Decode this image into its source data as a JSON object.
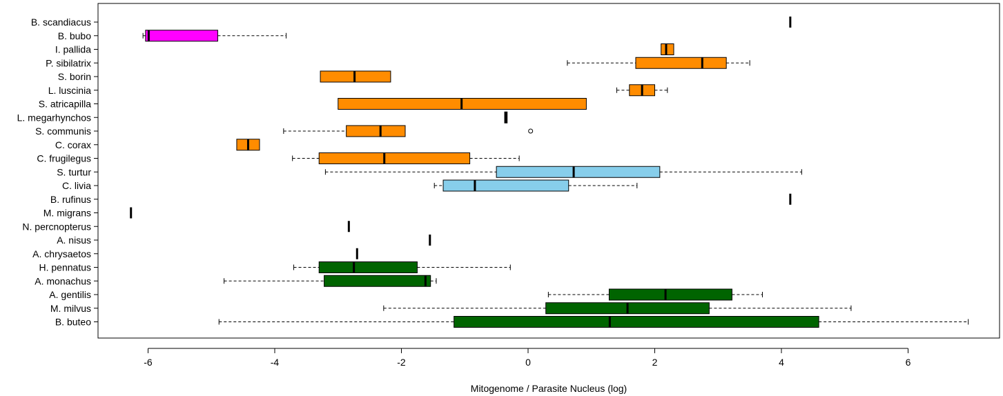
{
  "chart_data": {
    "type": "boxplot",
    "orientation": "horizontal",
    "title": "",
    "xlabel": "Mitogenome / Parasite Nucleus (log)",
    "ylabel": "",
    "xlim": [
      -6.7,
      7.35
    ],
    "xticks": [
      -6,
      -4,
      -2,
      0,
      2,
      4,
      6
    ],
    "xtick_labels": [
      "-6",
      "-4",
      "-2",
      "0",
      "2",
      "4",
      "6"
    ],
    "grid": false,
    "colors": {
      "magenta": "#ff00ff",
      "orange": "#ff8c00",
      "lightblue": "#87ceeb",
      "darkgreen": "#006400"
    },
    "species": [
      {
        "name": "B. scandiacus",
        "color": "magenta",
        "min": 4.14,
        "q1": 4.14,
        "median": 4.14,
        "q3": 4.14,
        "max": 4.14,
        "outliers": []
      },
      {
        "name": "B. bubo",
        "color": "magenta",
        "min": -6.08,
        "q1": -6.04,
        "median": -5.99,
        "q3": -4.9,
        "max": -3.82,
        "outliers": []
      },
      {
        "name": "I. pallida",
        "color": "orange",
        "min": 2.1,
        "q1": 2.1,
        "median": 2.18,
        "q3": 2.3,
        "max": 2.3,
        "outliers": []
      },
      {
        "name": "P. sibilatrix",
        "color": "orange",
        "min": 0.62,
        "q1": 1.7,
        "median": 2.75,
        "q3": 3.13,
        "max": 3.5,
        "outliers": []
      },
      {
        "name": "S. borin",
        "color": "orange",
        "min": -3.28,
        "q1": -3.28,
        "median": -2.74,
        "q3": -2.17,
        "max": -2.17,
        "outliers": []
      },
      {
        "name": "L. luscinia",
        "color": "orange",
        "min": 1.4,
        "q1": 1.6,
        "median": 1.8,
        "q3": 2.0,
        "max": 2.2,
        "outliers": []
      },
      {
        "name": "S. atricapilla",
        "color": "orange",
        "min": -3.0,
        "q1": -3.0,
        "median": -1.05,
        "q3": 0.92,
        "max": 0.92,
        "outliers": []
      },
      {
        "name": "L. megarhynchos",
        "color": "orange",
        "min": -0.37,
        "q1": -0.37,
        "median": -0.35,
        "q3": -0.33,
        "max": -0.33,
        "outliers": []
      },
      {
        "name": "S. communis",
        "color": "orange",
        "min": -3.86,
        "q1": -2.87,
        "median": -2.33,
        "q3": -1.94,
        "max": -1.94,
        "outliers": [
          0.04
        ]
      },
      {
        "name": "C. corax",
        "color": "orange",
        "min": -4.6,
        "q1": -4.6,
        "median": -4.42,
        "q3": -4.24,
        "max": -4.24,
        "outliers": []
      },
      {
        "name": "C. frugilegus",
        "color": "orange",
        "min": -3.72,
        "q1": -3.3,
        "median": -2.27,
        "q3": -0.92,
        "max": -0.14,
        "outliers": []
      },
      {
        "name": "S. turtur",
        "color": "lightblue",
        "min": -3.2,
        "q1": -0.5,
        "median": 0.72,
        "q3": 2.08,
        "max": 4.32,
        "outliers": []
      },
      {
        "name": "C. livia",
        "color": "lightblue",
        "min": -1.48,
        "q1": -1.34,
        "median": -0.84,
        "q3": 0.64,
        "max": 1.72,
        "outliers": []
      },
      {
        "name": "B. rufinus",
        "color": "lightblue",
        "min": 4.14,
        "q1": 4.14,
        "median": 4.14,
        "q3": 4.14,
        "max": 4.14,
        "outliers": []
      },
      {
        "name": "M. migrans",
        "color": "darkgreen",
        "min": -6.27,
        "q1": -6.27,
        "median": -6.27,
        "q3": -6.27,
        "max": -6.27,
        "outliers": []
      },
      {
        "name": "N. percnopterus",
        "color": "darkgreen",
        "min": -2.83,
        "q1": -2.83,
        "median": -2.83,
        "q3": -2.83,
        "max": -2.83,
        "outliers": []
      },
      {
        "name": "A. nisus",
        "color": "darkgreen",
        "min": -1.55,
        "q1": -1.55,
        "median": -1.55,
        "q3": -1.55,
        "max": -1.55,
        "outliers": []
      },
      {
        "name": "A. chrysaetos",
        "color": "darkgreen",
        "min": -2.7,
        "q1": -2.7,
        "median": -2.7,
        "q3": -2.7,
        "max": -2.7,
        "outliers": []
      },
      {
        "name": "H. pennatus",
        "color": "darkgreen",
        "min": -3.7,
        "q1": -3.3,
        "median": -2.75,
        "q3": -1.75,
        "max": -0.28,
        "outliers": []
      },
      {
        "name": "A. monachus",
        "color": "darkgreen",
        "min": -4.8,
        "q1": -3.22,
        "median": -1.62,
        "q3": -1.54,
        "max": -1.45,
        "outliers": []
      },
      {
        "name": "A. gentilis",
        "color": "darkgreen",
        "min": 0.32,
        "q1": 1.28,
        "median": 2.17,
        "q3": 3.22,
        "max": 3.7,
        "outliers": []
      },
      {
        "name": "M. milvus",
        "color": "darkgreen",
        "min": -2.28,
        "q1": 0.28,
        "median": 1.57,
        "q3": 2.86,
        "max": 5.1,
        "outliers": []
      },
      {
        "name": "B. buteo",
        "color": "darkgreen",
        "min": -4.88,
        "q1": -1.17,
        "median": 1.29,
        "q3": 4.59,
        "max": 6.95,
        "outliers": []
      }
    ]
  }
}
